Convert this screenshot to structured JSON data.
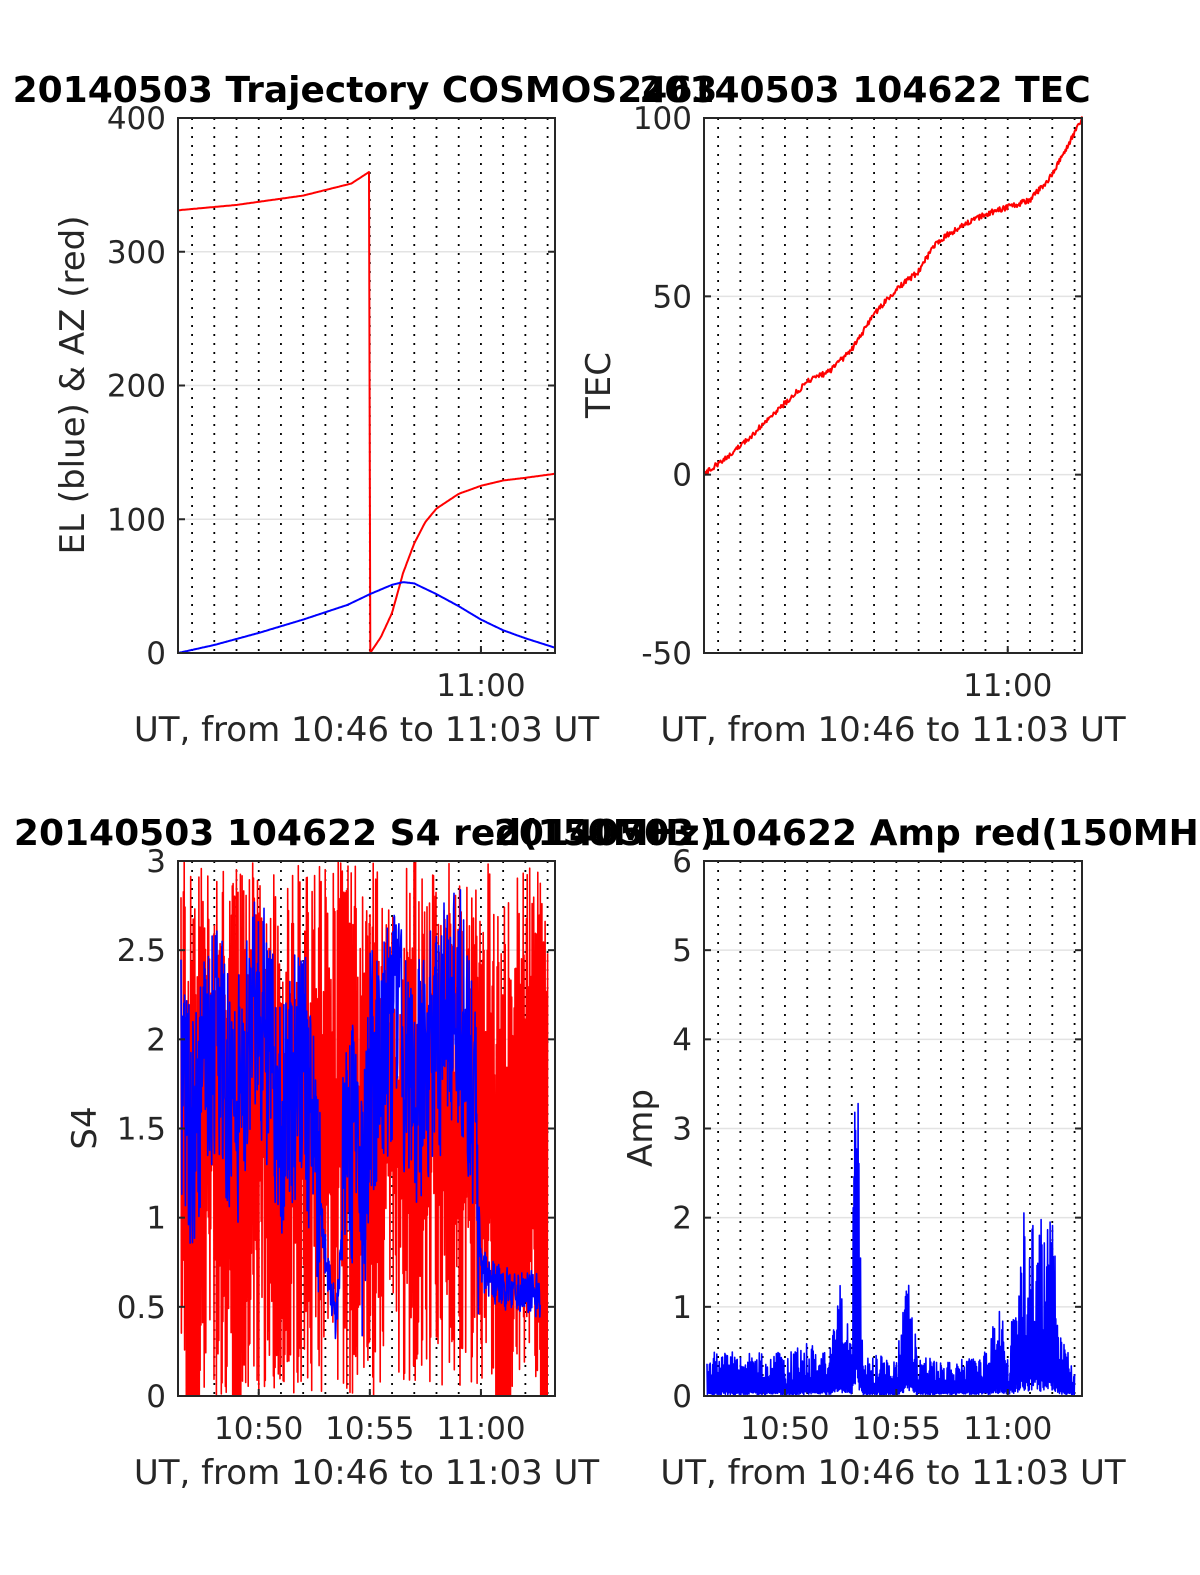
{
  "figure": {
    "background": "#ffffff",
    "grid_color": "#e3e3e3",
    "tick_minute_start": 46,
    "tick_minute_end": 63
  },
  "colors": {
    "red": "#ff0000",
    "blue": "#0000ff",
    "axes": "#262626"
  },
  "chart_data": [
    {
      "type": "line",
      "title": "20140503 Trajectory COSMOS2463",
      "xlabel": "UT, from 10:46 to 11:03 UT",
      "ylabel": "EL (blue) & AZ (red)",
      "xlim": [
        "10:46:22",
        "11:03:20"
      ],
      "ylim": [
        0,
        400
      ],
      "yticks": [
        0,
        100,
        200,
        300,
        400
      ],
      "xticks": [
        "11:00"
      ],
      "grid": true,
      "series": [
        {
          "color": "#ff0000",
          "x": [
            "10:46:22",
            "10:49:00",
            "10:52:00",
            "10:54:10",
            "10:55:00",
            "10:55:01",
            "10:55:30",
            "10:56:00",
            "10:56:30",
            "10:57:00",
            "10:57:30",
            "10:58:00",
            "10:59:00",
            "11:00:00",
            "11:01:00",
            "11:02:00",
            "11:03:20"
          ],
          "y": [
            331,
            335,
            342,
            351,
            360,
            0,
            12,
            30,
            60,
            82,
            98,
            108,
            119,
            125,
            129,
            131,
            134
          ]
        },
        {
          "color": "#0000ff",
          "x": [
            "10:46:22",
            "10:48:00",
            "10:50:00",
            "10:52:00",
            "10:54:00",
            "10:55:00",
            "10:56:00",
            "10:56:30",
            "10:57:00",
            "10:58:00",
            "10:59:00",
            "11:00:00",
            "11:01:00",
            "11:02:00",
            "11:03:20"
          ],
          "y": [
            0,
            6,
            15,
            25,
            36,
            44,
            51,
            53,
            52,
            44,
            35,
            25,
            17,
            11,
            4
          ]
        }
      ]
    },
    {
      "type": "line",
      "title": "20140503 104622 TEC",
      "xlabel": "UT, from 10:46 to 11:03 UT",
      "ylabel": "TEC",
      "xlim": [
        "10:46:22",
        "11:03:20"
      ],
      "ylim": [
        -50,
        100
      ],
      "yticks": [
        -50,
        0,
        50,
        100
      ],
      "xticks": [
        "11:00"
      ],
      "grid": true,
      "series": [
        {
          "color": "#ff0000",
          "x": [
            "10:46:22",
            "10:47:00",
            "10:48:00",
            "10:49:00",
            "10:50:00",
            "10:51:00",
            "10:52:00",
            "10:53:00",
            "10:54:00",
            "10:55:00",
            "10:56:00",
            "10:56:40",
            "10:57:00",
            "10:58:00",
            "10:59:00",
            "11:00:00",
            "11:01:00",
            "11:02:00",
            "11:02:40",
            "11:03:20"
          ],
          "y": [
            0,
            3,
            8,
            14,
            20,
            26,
            29,
            35,
            45,
            52,
            57,
            64,
            66,
            70,
            73,
            75,
            77,
            84,
            92,
            100
          ]
        }
      ]
    },
    {
      "type": "line",
      "title": "20140503 104622 S4 red(150MHz)",
      "xlabel": "UT, from 10:46 to 11:03 UT",
      "ylabel": "S4",
      "xlim": [
        "10:46:22",
        "11:03:20"
      ],
      "ylim": [
        0,
        3
      ],
      "yticks": [
        "0",
        "0.5",
        "1",
        "1.5",
        "2",
        "2.5",
        "3"
      ],
      "xticks": [
        "10:50",
        "10:55",
        "11:00"
      ],
      "grid": true,
      "series": [
        {
          "color": "#ff0000",
          "x": [
            "10:46:30",
            "10:47:00",
            "10:48:00",
            "10:49:00",
            "10:50:00",
            "10:51:00",
            "10:52:00",
            "10:53:00",
            "10:54:00",
            "10:55:00",
            "10:56:00",
            "10:57:00",
            "10:58:00",
            "10:59:00",
            "11:00:00",
            "11:01:00",
            "11:02:00",
            "11:03:00"
          ],
          "y": [
            1.8,
            0,
            3,
            0.5,
            3,
            1.2,
            3,
            1.8,
            3,
            1.5,
            3,
            1.4,
            3,
            1.9,
            3,
            0,
            3,
            0
          ]
        },
        {
          "color": "#0000ff",
          "x": [
            "10:46:30",
            "10:47:00",
            "10:48:00",
            "10:49:00",
            "10:50:00",
            "10:51:00",
            "10:52:00",
            "10:52:40",
            "10:53:00",
            "10:53:30",
            "10:54:00",
            "10:54:40",
            "10:55:00",
            "10:56:00",
            "10:57:00",
            "10:58:00",
            "10:59:00",
            "10:59:40",
            "11:00:00",
            "11:01:00",
            "11:02:00",
            "11:02:40"
          ],
          "y": [
            1.8,
            1.5,
            2.0,
            1.6,
            2.2,
            1.6,
            1.9,
            1.1,
            0.8,
            0.4,
            1.6,
            1.0,
            1.8,
            2.1,
            1.7,
            2.0,
            2.2,
            1.7,
            0.7,
            0.6,
            0.6,
            0.55
          ]
        }
      ]
    },
    {
      "type": "line",
      "title": "20140503 104622 Amp red(150MHz)",
      "xlabel": "UT, from 10:46 to 11:03 UT",
      "ylabel": "Amp",
      "xlim": [
        "10:46:22",
        "11:03:20"
      ],
      "ylim": [
        0,
        6
      ],
      "yticks": [
        0,
        1,
        2,
        3,
        4,
        5,
        6
      ],
      "xticks": [
        "10:50",
        "10:55",
        "11:00"
      ],
      "grid": true,
      "series": [
        {
          "color": "#0000ff",
          "x": [
            "10:46:30",
            "10:47:00",
            "10:48:00",
            "10:49:00",
            "10:50:00",
            "10:51:00",
            "10:52:00",
            "10:52:30",
            "10:53:00",
            "10:53:10",
            "10:53:30",
            "10:54:00",
            "10:55:00",
            "10:55:30",
            "10:56:00",
            "10:57:00",
            "10:58:00",
            "10:59:00",
            "10:59:40",
            "11:00:00",
            "11:00:40",
            "11:01:00",
            "11:02:00",
            "11:02:20",
            "11:03:00"
          ],
          "y": [
            0.3,
            0.4,
            0.35,
            0.4,
            0.35,
            0.45,
            0.4,
            1.0,
            0.4,
            3.8,
            0.3,
            0.35,
            0.3,
            1.05,
            0.35,
            0.3,
            0.35,
            0.4,
            0.8,
            0.3,
            1.6,
            1.5,
            1.6,
            0.5,
            0.3
          ]
        }
      ]
    }
  ]
}
